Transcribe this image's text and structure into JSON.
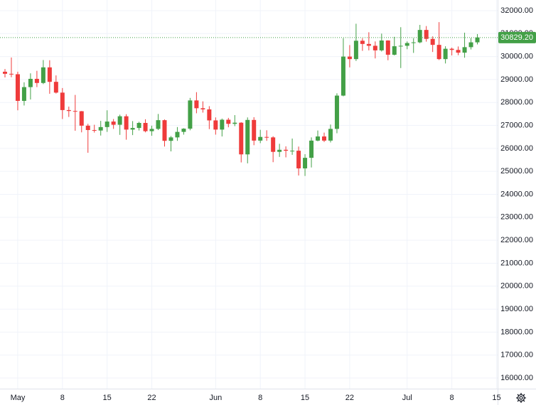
{
  "chart_data": {
    "type": "candlestick",
    "x": [
      "Apr 29",
      "Apr 30",
      "May 1",
      "May 2",
      "May 3",
      "May 4",
      "May 5",
      "May 6",
      "May 7",
      "May 8",
      "May 9",
      "May 10",
      "May 11",
      "May 12",
      "May 13",
      "May 14",
      "May 15",
      "May 16",
      "May 17",
      "May 18",
      "May 19",
      "May 20",
      "May 21",
      "May 22",
      "May 23",
      "May 24",
      "May 25",
      "May 26",
      "May 27",
      "May 28",
      "May 29",
      "May 30",
      "May 31",
      "Jun 1",
      "Jun 2",
      "Jun 3",
      "Jun 4",
      "Jun 5",
      "Jun 6",
      "Jun 7",
      "Jun 8",
      "Jun 9",
      "Jun 10",
      "Jun 11",
      "Jun 12",
      "Jun 13",
      "Jun 14",
      "Jun 15",
      "Jun 16",
      "Jun 17",
      "Jun 18",
      "Jun 19",
      "Jun 20",
      "Jun 21",
      "Jun 22",
      "Jun 23",
      "Jun 24",
      "Jun 25",
      "Jun 26",
      "Jun 27",
      "Jun 28",
      "Jun 29",
      "Jun 30",
      "Jul 1",
      "Jul 2",
      "Jul 3",
      "Jul 4",
      "Jul 5",
      "Jul 6",
      "Jul 7",
      "Jul 8",
      "Jul 9",
      "Jul 10",
      "Jul 11",
      "Jul 12"
    ],
    "open": [
      29340,
      29250,
      29230,
      28070,
      28670,
      29030,
      28850,
      29530,
      28900,
      28430,
      27670,
      27630,
      27620,
      26990,
      26800,
      26780,
      26930,
      27170,
      27030,
      27400,
      26820,
      26890,
      27110,
      26750,
      26850,
      27230,
      26330,
      26480,
      26720,
      26860,
      28090,
      27750,
      27700,
      27220,
      26820,
      27250,
      27070,
      27120,
      25740,
      27240,
      26340,
      26500,
      26480,
      25850,
      25940,
      25900,
      25900,
      25130,
      25590,
      26340,
      26520,
      26340,
      26850,
      28300,
      30000,
      29890,
      30690,
      30550,
      30470,
      30270,
      30700,
      30080,
      30450,
      30470,
      30590,
      30620,
      31160,
      30770,
      30510,
      29890,
      30340,
      30290,
      30170,
      30410,
      30620
    ],
    "high": [
      29460,
      29960,
      29340,
      28880,
      29270,
      29380,
      29850,
      29840,
      29180,
      28630,
      27820,
      28330,
      27630,
      27070,
      27030,
      27200,
      27660,
      27280,
      27470,
      27490,
      27190,
      27160,
      27270,
      26990,
      27500,
      27260,
      26540,
      26930,
      26880,
      28200,
      28450,
      28050,
      27840,
      27350,
      27300,
      27330,
      27450,
      27140,
      27350,
      27360,
      26810,
      26790,
      26530,
      26200,
      26090,
      26430,
      26080,
      25750,
      26480,
      26780,
      26690,
      27040,
      28400,
      30800,
      30500,
      31430,
      30800,
      31060,
      30660,
      31000,
      30710,
      30860,
      31280,
      30660,
      30800,
      31380,
      31330,
      30880,
      31500,
      30450,
      30390,
      30440,
      31040,
      30810,
      30980
    ],
    "low": [
      29090,
      29100,
      27660,
      27870,
      28130,
      28670,
      28800,
      28380,
      28390,
      27280,
      27370,
      26770,
      26700,
      25810,
      26690,
      26560,
      26720,
      26850,
      26590,
      26380,
      26580,
      26780,
      26700,
      26550,
      26800,
      26080,
      25870,
      26330,
      26600,
      26790,
      27530,
      27560,
      26840,
      26600,
      26520,
      26920,
      26970,
      25390,
      25350,
      26140,
      26230,
      26330,
      25400,
      25630,
      25610,
      25720,
      24820,
      24800,
      25170,
      26310,
      26280,
      26260,
      26660,
      28270,
      29530,
      29810,
      30250,
      30270,
      29920,
      30220,
      29840,
      30050,
      29500,
      30320,
      30160,
      30580,
      30650,
      30200,
      29850,
      29700,
      30050,
      30060,
      29950,
      30310,
      30530
    ],
    "close": [
      29250,
      29230,
      28070,
      28670,
      29030,
      28850,
      29530,
      28900,
      28430,
      27670,
      27630,
      27620,
      26990,
      26800,
      26780,
      26930,
      27170,
      27030,
      27400,
      26820,
      26890,
      27110,
      26750,
      26850,
      27230,
      26330,
      26480,
      26720,
      26860,
      28090,
      27750,
      27700,
      27220,
      26820,
      27250,
      27070,
      27120,
      25740,
      27240,
      26340,
      26500,
      26480,
      25850,
      25940,
      25900,
      25900,
      25130,
      25590,
      26340,
      26520,
      26340,
      26850,
      28300,
      30000,
      29890,
      30690,
      30550,
      30470,
      30270,
      30700,
      30080,
      30450,
      30470,
      30590,
      30620,
      31160,
      30770,
      30510,
      29890,
      30340,
      30290,
      30170,
      30410,
      30620,
      30829.2
    ],
    "up_color": "#43a047",
    "down_color": "#ef3b3b",
    "ylim": [
      15536,
      32464
    ],
    "yticks": [
      {
        "value": 16000,
        "label": "16000.00"
      },
      {
        "value": 17000,
        "label": "17000.00"
      },
      {
        "value": 18000,
        "label": "18000.00"
      },
      {
        "value": 19000,
        "label": "19000.00"
      },
      {
        "value": 20000,
        "label": "20000.00"
      },
      {
        "value": 21000,
        "label": "21000.00"
      },
      {
        "value": 22000,
        "label": "22000.00"
      },
      {
        "value": 23000,
        "label": "23000.00"
      },
      {
        "value": 24000,
        "label": "24000.00"
      },
      {
        "value": 25000,
        "label": "25000.00"
      },
      {
        "value": 26000,
        "label": "26000.00"
      },
      {
        "value": 27000,
        "label": "27000.00"
      },
      {
        "value": 28000,
        "label": "28000.00"
      },
      {
        "value": 29000,
        "label": "29000.00"
      },
      {
        "value": 30000,
        "label": "30000.00"
      },
      {
        "value": 31000,
        "label": "31000.00"
      },
      {
        "value": 32000,
        "label": "32000.00"
      }
    ],
    "xticks": [
      {
        "value": "May 1",
        "label": "May"
      },
      {
        "value": "May 8",
        "label": "8"
      },
      {
        "value": "May 15",
        "label": "15"
      },
      {
        "value": "May 22",
        "label": "22"
      },
      {
        "value": "Jun 1",
        "label": "Jun"
      },
      {
        "value": "Jun 8",
        "label": "8"
      },
      {
        "value": "Jun 15",
        "label": "15"
      },
      {
        "value": "Jun 22",
        "label": "22"
      },
      {
        "value": "Jul 1",
        "label": "Jul"
      },
      {
        "value": "Jul 8",
        "label": "8"
      },
      {
        "value": "Jul 15",
        "label": "15"
      }
    ],
    "grid": true,
    "last_price": {
      "value": 30829.2,
      "label": "30829.20"
    }
  }
}
